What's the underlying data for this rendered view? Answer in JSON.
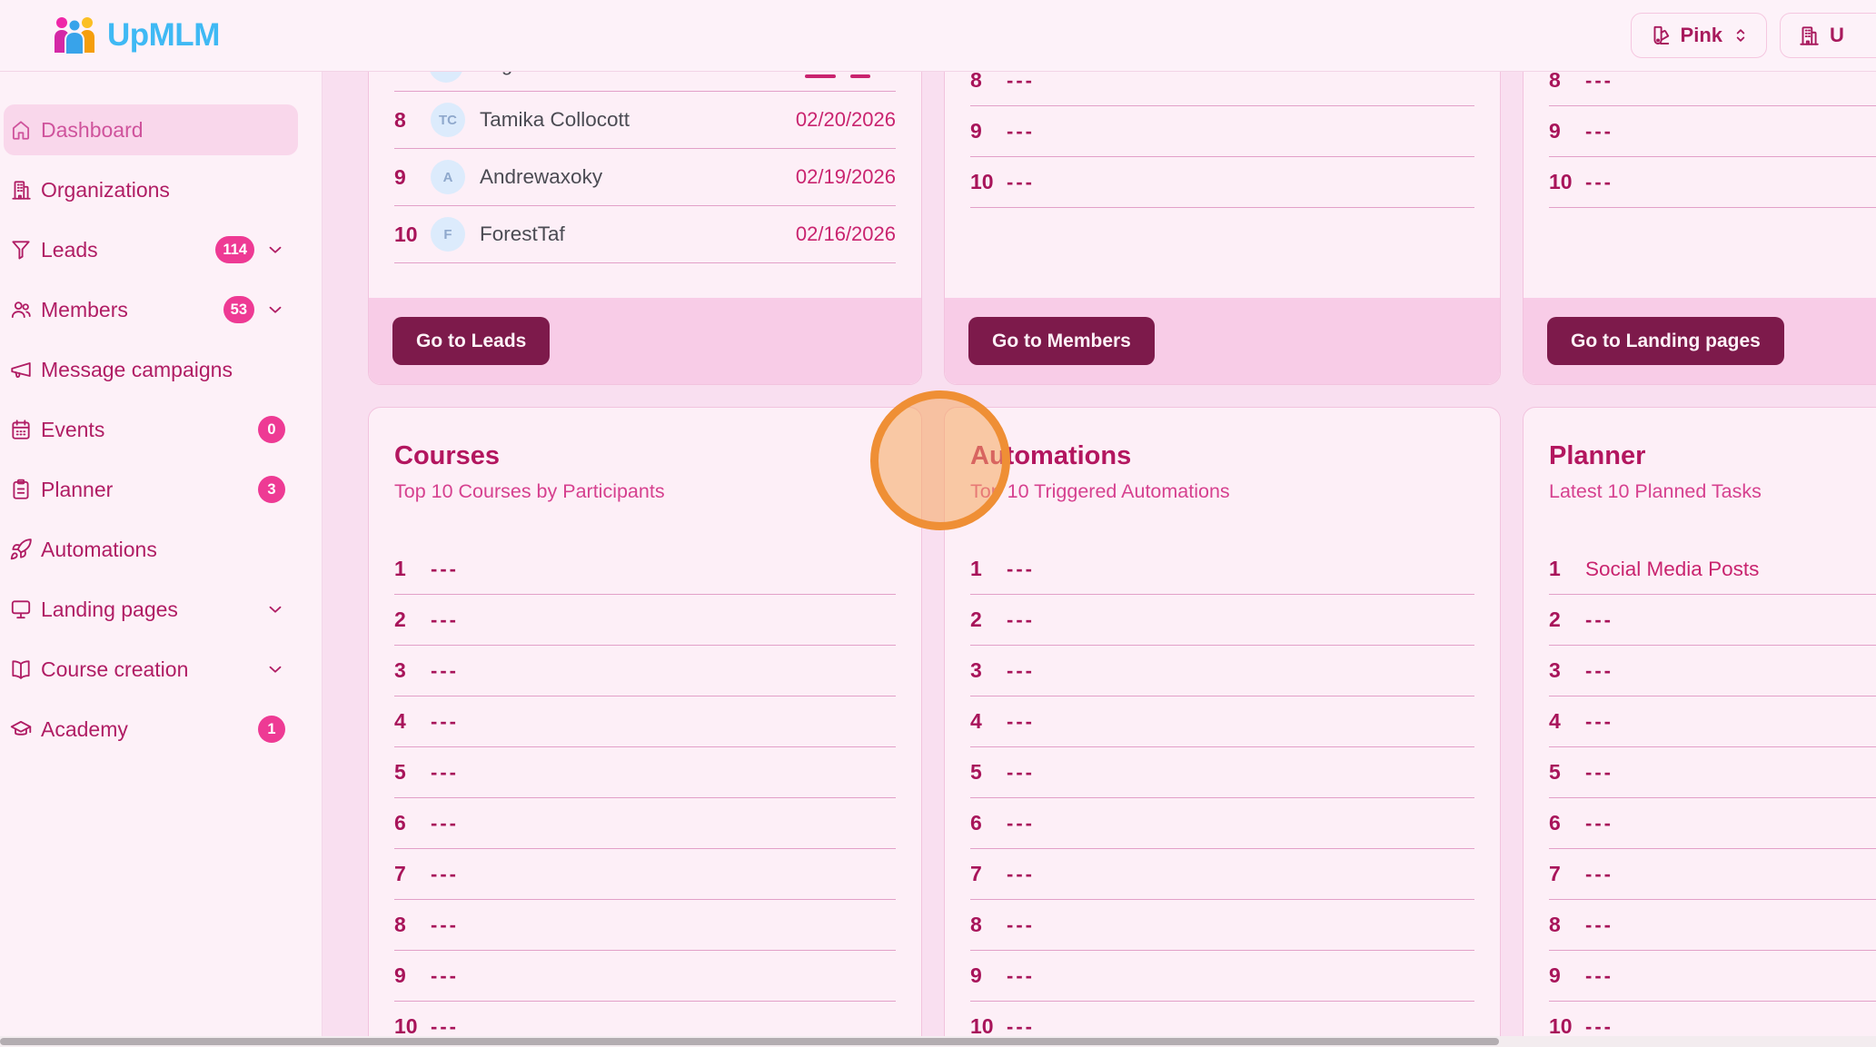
{
  "header": {
    "logo_text": "UpMLM",
    "theme_selector_label": "Pink",
    "org_selector_label": "U"
  },
  "sidebar": {
    "items": [
      {
        "label": "Dashboard",
        "icon": "home",
        "active": true
      },
      {
        "label": "Organizations",
        "icon": "building"
      },
      {
        "label": "Leads",
        "icon": "funnel",
        "badge": "114",
        "chevron": true
      },
      {
        "label": "Members",
        "icon": "users",
        "badge": "53",
        "chevron": true
      },
      {
        "label": "Message campaigns",
        "icon": "megaphone"
      },
      {
        "label": "Events",
        "icon": "calendar",
        "badge": "0"
      },
      {
        "label": "Planner",
        "icon": "clipboard",
        "badge": "3"
      },
      {
        "label": "Automations",
        "icon": "rocket"
      },
      {
        "label": "Landing pages",
        "icon": "monitor",
        "chevron": true
      },
      {
        "label": "Course creation",
        "icon": "book",
        "chevron": true
      },
      {
        "label": "Academy",
        "icon": "cap",
        "badge": "1"
      }
    ]
  },
  "cards": {
    "leads": {
      "partial_row_fragment": "g",
      "rows": [
        {
          "num": "8",
          "avatar": "TC",
          "name": "Tamika Collocott",
          "date": "02/20/2026"
        },
        {
          "num": "9",
          "avatar": "A",
          "name": "Andrewaxoky",
          "date": "02/19/2026"
        },
        {
          "num": "10",
          "avatar": "F",
          "name": "ForestTaf",
          "date": "02/16/2026"
        }
      ],
      "button_label": "Go to Leads"
    },
    "members": {
      "rows": [
        {
          "num": "8",
          "value": "---"
        },
        {
          "num": "9",
          "value": "---"
        },
        {
          "num": "10",
          "value": "---"
        }
      ],
      "button_label": "Go to Members"
    },
    "landing_pages": {
      "rows": [
        {
          "num": "8",
          "value": "---"
        },
        {
          "num": "9",
          "value": "---"
        },
        {
          "num": "10",
          "value": "---"
        }
      ],
      "button_label": "Go to Landing pages"
    },
    "courses": {
      "title": "Courses",
      "subtitle": "Top 10 Courses by Participants",
      "rows": [
        {
          "num": "1",
          "value": "---"
        },
        {
          "num": "2",
          "value": "---"
        },
        {
          "num": "3",
          "value": "---"
        },
        {
          "num": "4",
          "value": "---"
        },
        {
          "num": "5",
          "value": "---"
        },
        {
          "num": "6",
          "value": "---"
        },
        {
          "num": "7",
          "value": "---"
        },
        {
          "num": "8",
          "value": "---"
        },
        {
          "num": "9",
          "value": "---"
        },
        {
          "num": "10",
          "value": "---"
        }
      ]
    },
    "automations": {
      "title": "Automations",
      "subtitle": "Top 10 Triggered Automations",
      "rows": [
        {
          "num": "1",
          "value": "---"
        },
        {
          "num": "2",
          "value": "---"
        },
        {
          "num": "3",
          "value": "---"
        },
        {
          "num": "4",
          "value": "---"
        },
        {
          "num": "5",
          "value": "---"
        },
        {
          "num": "6",
          "value": "---"
        },
        {
          "num": "7",
          "value": "---"
        },
        {
          "num": "8",
          "value": "---"
        },
        {
          "num": "9",
          "value": "---"
        },
        {
          "num": "10",
          "value": "---"
        }
      ]
    },
    "planner": {
      "title": "Planner",
      "subtitle": "Latest 10 Planned Tasks",
      "rows": [
        {
          "num": "1",
          "value": "Social Media Posts",
          "pink": true
        },
        {
          "num": "2",
          "value": "---"
        },
        {
          "num": "3",
          "value": "---"
        },
        {
          "num": "4",
          "value": "---"
        },
        {
          "num": "5",
          "value": "---"
        },
        {
          "num": "6",
          "value": "---"
        },
        {
          "num": "7",
          "value": "---"
        },
        {
          "num": "8",
          "value": "---"
        },
        {
          "num": "9",
          "value": "---"
        },
        {
          "num": "10",
          "value": "---"
        }
      ]
    }
  },
  "colors": {
    "accent_dark_magenta": "#a8145a",
    "accent_pink": "#d6418f",
    "badge_pink": "#ee3a94",
    "button_maroon": "#7d1a4b",
    "logo_blue": "#3fb9f4",
    "click_ring_orange": "#ef8f35",
    "card_background": "#fdeff7",
    "footer_pink": "#f8cce7"
  }
}
